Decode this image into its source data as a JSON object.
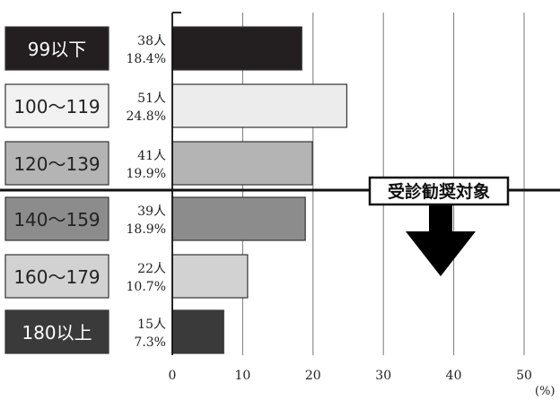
{
  "chart_data": {
    "type": "bar",
    "orientation": "horizontal",
    "categories": [
      "99以下",
      "100〜119",
      "120〜139",
      "140〜159",
      "160〜179",
      "180以上"
    ],
    "values": [
      18.4,
      24.8,
      19.9,
      18.9,
      10.7,
      7.3
    ],
    "counts": [
      "38人",
      "51人",
      "41人",
      "39人",
      "22人",
      "15人"
    ],
    "percent_labels": [
      "18.4%",
      "24.8%",
      "19.9%",
      "18.9%",
      "10.7%",
      "7.3%"
    ],
    "category_box_colors": [
      "#231f20",
      "#f2f2f2",
      "#b4b4b4",
      "#8c8c8c",
      "#d2d2d2",
      "#3a3a3a"
    ],
    "category_text_colors": [
      "#ffffff",
      "#222222",
      "#222222",
      "#222222",
      "#222222",
      "#ffffff"
    ],
    "bar_colors": [
      "#231f20",
      "#ececec",
      "#b4b4b4",
      "#8c8c8c",
      "#d2d2d2",
      "#3a3a3a"
    ],
    "xlim": [
      0,
      50
    ],
    "x_ticks": [
      0,
      10,
      20,
      30,
      40,
      50
    ],
    "x_tick_labels": [
      "0",
      "10",
      "20",
      "30",
      "40",
      "50"
    ],
    "x_unit": "(%)",
    "grid": true,
    "threshold_after_category": "120〜139",
    "annotation": {
      "text": "受診勧奨対象",
      "arrow": "down"
    }
  }
}
